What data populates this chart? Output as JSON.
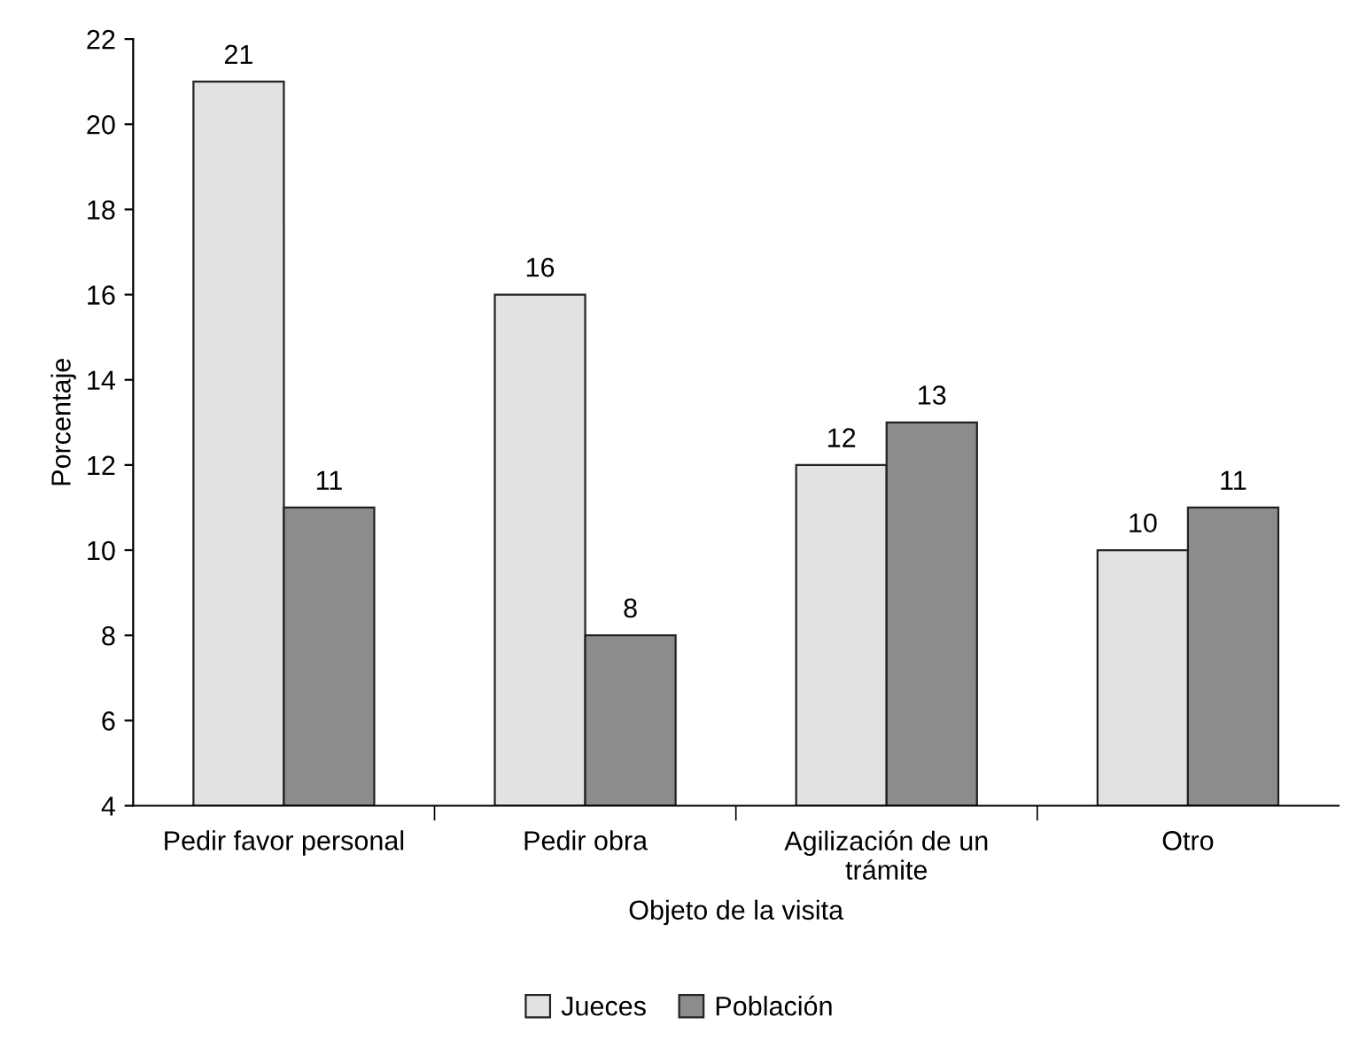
{
  "chart_data": {
    "type": "bar",
    "xlabel": "Objeto de la visita",
    "ylabel": "Porcentaje",
    "categories": [
      "Pedir favor personal",
      "Pedir obra",
      "Agilización de un\ntrámite",
      "Otro"
    ],
    "series": [
      {
        "name": "Jueces",
        "color": "#e2e2e2",
        "values": [
          21,
          16,
          12,
          10
        ]
      },
      {
        "name": "Población",
        "color": "#8c8c8c",
        "values": [
          11,
          8,
          13,
          11
        ]
      }
    ],
    "ylim": [
      4,
      22
    ],
    "yticks": [
      4,
      6,
      8,
      10,
      12,
      14,
      16,
      18,
      20,
      22
    ],
    "grid": false,
    "legend": "bottom",
    "data_labels": true
  }
}
